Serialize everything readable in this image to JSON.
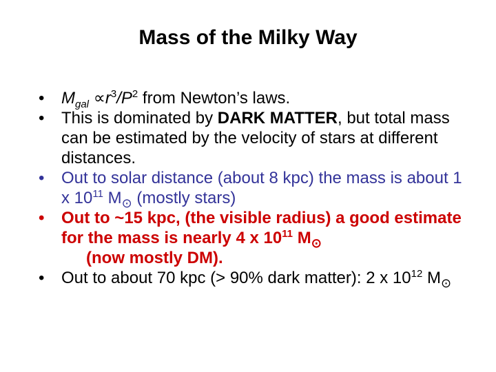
{
  "title": "Mass of the Milky Way",
  "bullet_symbol": "•",
  "colors": {
    "text": "#000000",
    "blue": "#333399",
    "red": "#cc0000"
  },
  "bullets": [
    {
      "m": "M",
      "gal": "gal",
      "propto": "∝",
      "r": "r",
      "r_exp": "3",
      "slash_p": "/P",
      "p_exp": "2",
      "rest": " from Newton’s laws."
    },
    {
      "text_before": "This is dominated by ",
      "bold": "DARK MATTER",
      "text_after": ", but total mass can be estimated by the velocity of stars at different distances."
    },
    {
      "text_before": "Out to solar distance (about 8 kpc) the mass is about 1 x 10",
      "exp": "11",
      "m": " M",
      "sun": "⊙",
      "text_after": " (mostly stars)"
    },
    {
      "text_before": "Out to ~15 kpc, (the visible radius) a good estimate for the mass is nearly 4 x 10",
      "exp": "11",
      "m": " M",
      "sun": "⊙",
      "text_after": "(now mostly DM)."
    },
    {
      "text_before": "Out to about 70 kpc (> 90% dark matter): 2 x 10",
      "exp": "12",
      "m": " M",
      "sun": "⊙"
    }
  ]
}
